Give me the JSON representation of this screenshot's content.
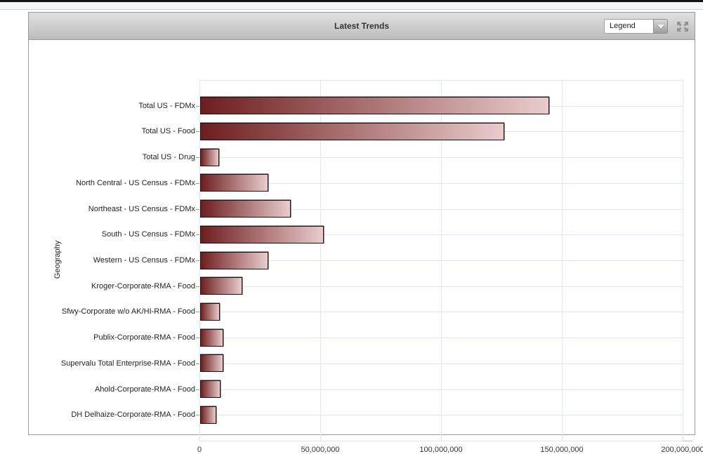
{
  "window": {
    "header_title": "Latest Trends",
    "legend_label": "Legend"
  },
  "chart_data": {
    "type": "bar",
    "orientation": "horizontal",
    "title": "Latest Trends",
    "ylabel": "Geography",
    "xlabel": "",
    "xlim": [
      0,
      200000000
    ],
    "grid": true,
    "gridline_color": "#dce6f3",
    "bar_color_start": "#6e1e1e",
    "bar_color_end": "#e9cccc",
    "x_ticks": [
      "0",
      "50,000,000",
      "100,000,000",
      "150,000,000",
      "200,000,000"
    ],
    "x_tick_values": [
      0,
      50000000,
      100000000,
      150000000,
      200000000
    ],
    "categories": [
      "Total US - FDMx",
      "Total US - Food",
      "Total US - Drug",
      "North Central - US Census - FDMx",
      "Northeast - US Census - FDMx",
      "South - US Census - FDMx",
      "Western - US Census - FDMx",
      "Kroger-Corporate-RMA - Food",
      "Sfwy-Corporate w/o AK/HI-RMA - Food",
      "Publix-Corporate-RMA - Food",
      "Supervalu Total Enterprise-RMA - Food",
      "Ahold-Corporate-RMA - Food",
      "DH Delhaize-Corporate-RMA - Food"
    ],
    "values": [
      144500000,
      125800000,
      7800000,
      28200000,
      37400000,
      51200000,
      28200000,
      17400000,
      8100000,
      9700000,
      9700000,
      8400000,
      6600000
    ]
  }
}
